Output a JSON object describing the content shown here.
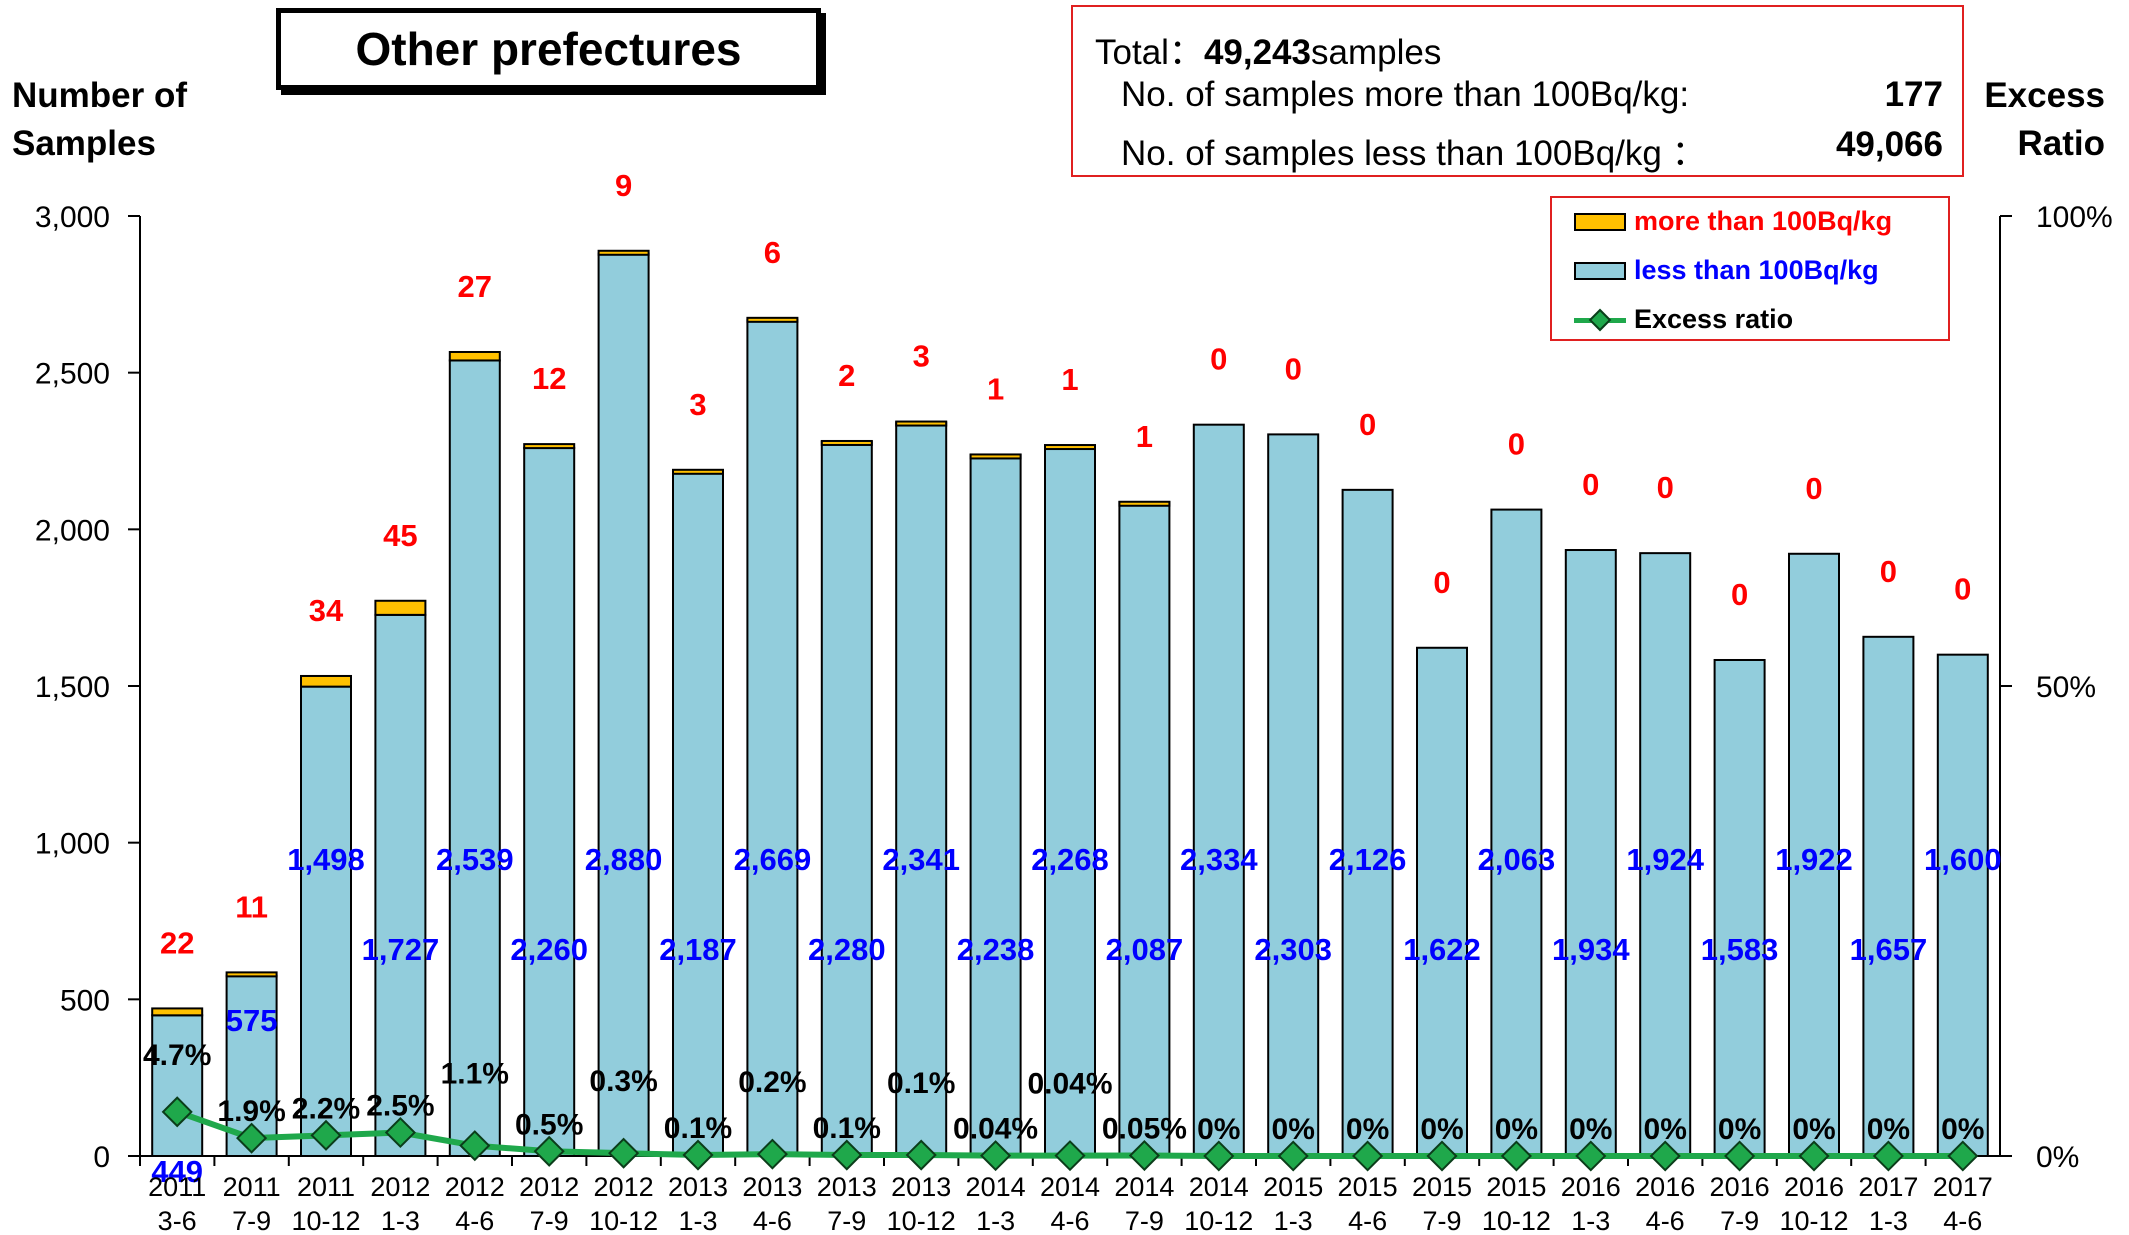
{
  "title": "Other prefectures",
  "summary": {
    "total_label": "Total：",
    "total_value": "49,243",
    "total_unit": "samples",
    "more_label": "No. of samples more than 100Bq/kg:",
    "more_value": "177",
    "less_label": "No. of samples less than 100Bq/kg ：",
    "less_value": "49,066"
  },
  "y_left_title_line1": "Number of",
  "y_left_title_line2": "Samples",
  "y_right_title_line1": "Excess",
  "y_right_title_line2": "Ratio",
  "legend": {
    "more": "more than 100Bq/kg",
    "less": "less than 100Bq/kg",
    "ratio": "Excess ratio"
  },
  "colors": {
    "less": "#92cddc",
    "more": "#ffc000",
    "ratio_line": "#1fa84b",
    "more_label": "#ff0000",
    "less_label": "#0000ff",
    "ratio_label": "#000000"
  },
  "chart_data": {
    "type": "bar",
    "stacked": true,
    "categories": [
      [
        "2011",
        "3-6"
      ],
      [
        "2011",
        "7-9"
      ],
      [
        "2011",
        "10-12"
      ],
      [
        "2012",
        "1-3"
      ],
      [
        "2012",
        "4-6"
      ],
      [
        "2012",
        "7-9"
      ],
      [
        "2012",
        "10-12"
      ],
      [
        "2013",
        "1-3"
      ],
      [
        "2013",
        "4-6"
      ],
      [
        "2013",
        "7-9"
      ],
      [
        "2013",
        "10-12"
      ],
      [
        "2014",
        "1-3"
      ],
      [
        "2014",
        "4-6"
      ],
      [
        "2014",
        "7-9"
      ],
      [
        "2014",
        "10-12"
      ],
      [
        "2015",
        "1-3"
      ],
      [
        "2015",
        "4-6"
      ],
      [
        "2015",
        "7-9"
      ],
      [
        "2015",
        "10-12"
      ],
      [
        "2016",
        "1-3"
      ],
      [
        "2016",
        "4-6"
      ],
      [
        "2016",
        "7-9"
      ],
      [
        "2016",
        "10-12"
      ],
      [
        "2017",
        "1-3"
      ],
      [
        "2017",
        "4-6"
      ]
    ],
    "series": [
      {
        "name": "less than 100Bq/kg",
        "values": [
          449,
          575,
          1498,
          1727,
          2539,
          2260,
          2880,
          2187,
          2669,
          2280,
          2341,
          2238,
          2268,
          2087,
          2334,
          2303,
          2126,
          1622,
          2063,
          1934,
          1924,
          1583,
          1922,
          1657,
          1600
        ],
        "labels": [
          "449",
          "575",
          "1,498",
          "1,727",
          "2,539",
          "2,260",
          "2,880",
          "2,187",
          "2,669",
          "2,280",
          "2,341",
          "2,238",
          "2,268",
          "2,087",
          "2,334",
          "2,303",
          "2,126",
          "1,622",
          "2,063",
          "1,934",
          "1,924",
          "1,583",
          "1,922",
          "1,657",
          "1,600"
        ]
      },
      {
        "name": "more than 100Bq/kg",
        "values": [
          22,
          11,
          34,
          45,
          27,
          12,
          9,
          3,
          6,
          2,
          3,
          1,
          1,
          1,
          0,
          0,
          0,
          0,
          0,
          0,
          0,
          0,
          0,
          0,
          0
        ],
        "labels": [
          "22",
          "11",
          "34",
          "45",
          "27",
          "12",
          "9",
          "3",
          "6",
          "2",
          "3",
          "1",
          "1",
          "1",
          "0",
          "0",
          "0",
          "0",
          "0",
          "0",
          "0",
          "0",
          "0",
          "0",
          "0"
        ]
      },
      {
        "name": "Excess ratio",
        "values": [
          4.7,
          1.9,
          2.2,
          2.5,
          1.1,
          0.5,
          0.3,
          0.1,
          0.2,
          0.1,
          0.1,
          0.04,
          0.04,
          0.05,
          0,
          0,
          0,
          0,
          0,
          0,
          0,
          0,
          0,
          0,
          0
        ],
        "labels": [
          "4.7%",
          "1.9%",
          "2.2%",
          "2.5%",
          "1.1%",
          "0.5%",
          "0.3%",
          "0.1%",
          "0.2%",
          "0.1%",
          "0.1%",
          "0.04%",
          "0.04%",
          "0.05%",
          "0%",
          "0%",
          "0%",
          "0%",
          "0%",
          "0%",
          "0%",
          "0%",
          "0%",
          "0%",
          "0%"
        ]
      }
    ],
    "ylim": [
      0,
      3000
    ],
    "yticks": [
      "0",
      "500",
      "1,000",
      "1,500",
      "2,000",
      "2,500",
      "3,000"
    ],
    "y2lim": [
      0,
      100
    ],
    "y2ticks": [
      "0%",
      "50%",
      "100%"
    ],
    "legend_position": "top-right",
    "grid": false
  }
}
